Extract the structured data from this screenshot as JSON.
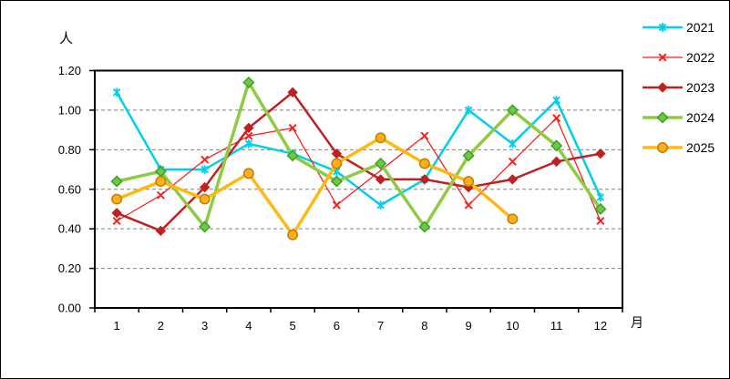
{
  "window": {
    "background": "#FFFFFF",
    "border_color": "#000000"
  },
  "chart_data": {
    "type": "line",
    "title": "",
    "ylabel": "人",
    "xlabel": "月",
    "categories": [
      "1",
      "2",
      "3",
      "4",
      "5",
      "6",
      "7",
      "8",
      "9",
      "10",
      "11",
      "12"
    ],
    "y_ticks": [
      "0.00",
      "0.20",
      "0.40",
      "0.60",
      "0.80",
      "1.00",
      "1.20"
    ],
    "ylim": [
      0,
      1.2
    ],
    "grid": "horizontal-dashed",
    "grid_color": "#808080",
    "axis_color": "#000000",
    "legend_position": "top-right",
    "series": [
      {
        "name": "2021",
        "color": "#00D0E8",
        "marker": "asterisk",
        "marker_fill": "#00D0E8",
        "marker_stroke": "#00D0E8",
        "line_width": 2.5,
        "values": [
          1.09,
          0.7,
          0.7,
          0.83,
          0.78,
          0.69,
          0.52,
          0.65,
          1.0,
          0.83,
          1.05,
          0.56
        ]
      },
      {
        "name": "2022",
        "color": "#FF1A1A",
        "marker": "x",
        "marker_fill": "#FF1A1A",
        "marker_stroke": "#FF1A1A",
        "line_width": 1.25,
        "values": [
          0.44,
          0.57,
          0.75,
          0.87,
          0.91,
          0.52,
          null,
          0.87,
          0.52,
          0.74,
          0.96,
          0.44
        ]
      },
      {
        "name": "2023",
        "color": "#BE2121",
        "marker": "diamond-filled",
        "marker_fill": "#BE2121",
        "marker_stroke": "#BE2121",
        "line_width": 2.5,
        "values": [
          0.48,
          0.39,
          0.61,
          0.91,
          1.09,
          0.78,
          0.65,
          0.65,
          0.61,
          0.65,
          0.74,
          0.78
        ]
      },
      {
        "name": "2024",
        "color": "#8FCB41",
        "marker": "diamond",
        "marker_fill": "#6EC840",
        "marker_stroke": "#3B9E31",
        "line_width": 3.5,
        "values": [
          0.64,
          0.69,
          0.41,
          1.14,
          0.77,
          0.64,
          0.73,
          0.41,
          0.77,
          1.0,
          0.82,
          0.5
        ]
      },
      {
        "name": "2025",
        "color": "#FFB913",
        "marker": "circle",
        "marker_fill": "#FFAF1E",
        "marker_stroke": "#C27D00",
        "line_width": 3.5,
        "values": [
          0.55,
          0.64,
          0.55,
          0.68,
          0.37,
          0.73,
          0.86,
          0.73,
          0.64,
          0.45,
          null,
          null
        ]
      }
    ]
  }
}
